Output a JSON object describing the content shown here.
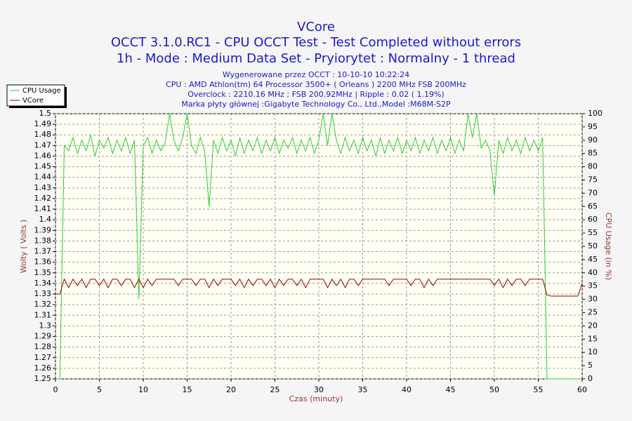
{
  "chart_data": {
    "type": "line",
    "title": "VCore",
    "subtitle": [
      "OCCT 3.1.0.RC1 - CPU OCCT Test - Test Completed without errors",
      "1h - Mode : Medium Data Set - Pryiorytet : Normalny - 1 thread"
    ],
    "info": [
      "Wygenerowane przez OCCT : 10-10-10 10:22:24",
      "CPU : AMD Athlon(tm) 64 Processor 3500+ ( Orleans ) 2200 MHz FSB 200MHz",
      "Overclock : 2210.16 MHz ; FSB 200.92MHz | Ripple : 0.02 ( 1.19%)",
      "Marka płyty głównej :Gigabyte Technology Co., Ltd.,Model :M68M-S2P"
    ],
    "xlabel": "Czas (minuty)",
    "ylabel": "Wolty ( Volts )",
    "y2label": "CPU Usage (in %)",
    "x": [
      0,
      0.5,
      1,
      1.5,
      2,
      2.5,
      3,
      3.5,
      4,
      4.5,
      5,
      5.5,
      6,
      6.5,
      7,
      7.5,
      8,
      8.5,
      9,
      9.5,
      10,
      10.5,
      11,
      11.5,
      12,
      12.5,
      13,
      13.5,
      14,
      14.5,
      15,
      15.5,
      16,
      16.5,
      17,
      17.5,
      18,
      18.5,
      19,
      19.5,
      20,
      20.5,
      21,
      21.5,
      22,
      22.5,
      23,
      23.5,
      24,
      24.5,
      25,
      25.5,
      26,
      26.5,
      27,
      27.5,
      28,
      28.5,
      29,
      29.5,
      30,
      30.5,
      31,
      31.5,
      32,
      32.5,
      33,
      33.5,
      34,
      34.5,
      35,
      35.5,
      36,
      36.5,
      37,
      37.5,
      38,
      38.5,
      39,
      39.5,
      40,
      40.5,
      41,
      41.5,
      42,
      42.5,
      43,
      43.5,
      44,
      44.5,
      45,
      45.5,
      46,
      46.5,
      47,
      47.5,
      48,
      48.5,
      49,
      49.5,
      50,
      50.5,
      51,
      51.5,
      52,
      52.5,
      53,
      53.5,
      54,
      54.5,
      55,
      55.5,
      56,
      56.5,
      57,
      57.5,
      58,
      58.5,
      59,
      59.5,
      60
    ],
    "series": [
      {
        "name": "CPU Usage",
        "color": "#33cc33",
        "axis": "y2",
        "values": [
          0,
          0,
          88,
          86,
          91,
          85,
          90,
          86,
          92,
          84,
          90,
          87,
          91,
          85,
          90,
          86,
          91,
          85,
          90,
          30,
          88,
          91,
          85,
          90,
          86,
          89,
          100,
          90,
          86,
          91,
          100,
          88,
          85,
          91,
          86,
          65,
          90,
          85,
          91,
          86,
          90,
          84,
          91,
          85,
          90,
          86,
          91,
          85,
          90,
          86,
          91,
          85,
          90,
          87,
          91,
          85,
          90,
          86,
          91,
          85,
          90,
          100,
          88,
          100,
          90,
          85,
          91,
          86,
          90,
          85,
          91,
          86,
          90,
          84,
          91,
          85,
          90,
          86,
          91,
          85,
          90,
          86,
          91,
          85,
          90,
          86,
          91,
          85,
          90,
          86,
          91,
          85,
          90,
          86,
          100,
          91,
          100,
          87,
          90,
          86,
          69,
          90,
          85,
          91,
          86,
          90,
          85,
          91,
          86,
          90,
          86,
          91,
          0,
          0,
          0,
          0,
          0,
          0,
          0,
          0,
          0
        ]
      },
      {
        "name": "VCore",
        "color": "#990000",
        "values": [
          1.33,
          1.33,
          1.344,
          1.336,
          1.344,
          1.338,
          1.344,
          1.336,
          1.344,
          1.344,
          1.338,
          1.344,
          1.336,
          1.344,
          1.344,
          1.338,
          1.344,
          1.344,
          1.336,
          1.344,
          1.336,
          1.344,
          1.338,
          1.344,
          1.344,
          1.344,
          1.344,
          1.344,
          1.338,
          1.344,
          1.344,
          1.344,
          1.338,
          1.344,
          1.344,
          1.336,
          1.344,
          1.338,
          1.344,
          1.344,
          1.344,
          1.338,
          1.344,
          1.336,
          1.344,
          1.338,
          1.344,
          1.344,
          1.338,
          1.344,
          1.336,
          1.344,
          1.338,
          1.344,
          1.344,
          1.338,
          1.344,
          1.336,
          1.344,
          1.344,
          1.344,
          1.344,
          1.336,
          1.344,
          1.338,
          1.344,
          1.336,
          1.344,
          1.344,
          1.338,
          1.344,
          1.344,
          1.344,
          1.344,
          1.344,
          1.344,
          1.338,
          1.344,
          1.344,
          1.344,
          1.344,
          1.338,
          1.344,
          1.344,
          1.336,
          1.344,
          1.338,
          1.344,
          1.344,
          1.344,
          1.344,
          1.344,
          1.344,
          1.344,
          1.344,
          1.344,
          1.344,
          1.344,
          1.344,
          1.344,
          1.338,
          1.344,
          1.336,
          1.344,
          1.338,
          1.344,
          1.344,
          1.338,
          1.344,
          1.344,
          1.344,
          1.344,
          1.329,
          1.328,
          1.328,
          1.328,
          1.328,
          1.328,
          1.328,
          1.328,
          1.34
        ]
      }
    ],
    "xlim": [
      0,
      60
    ],
    "xticks": [
      0,
      5,
      10,
      15,
      20,
      25,
      30,
      35,
      40,
      45,
      50,
      55,
      60
    ],
    "ylim": [
      1.25,
      1.5
    ],
    "yticks": [
      1.25,
      1.26,
      1.27,
      1.28,
      1.29,
      1.3,
      1.31,
      1.32,
      1.33,
      1.34,
      1.35,
      1.36,
      1.37,
      1.38,
      1.39,
      1.4,
      1.41,
      1.42,
      1.43,
      1.44,
      1.45,
      1.46,
      1.47,
      1.48,
      1.49,
      1.5
    ],
    "y2lim": [
      0,
      100
    ],
    "y2ticks": [
      0,
      5,
      10,
      15,
      20,
      25,
      30,
      35,
      40,
      45,
      50,
      55,
      60,
      65,
      70,
      75,
      80,
      85,
      90,
      95,
      100
    ],
    "grid": true,
    "legend": "top-left"
  }
}
